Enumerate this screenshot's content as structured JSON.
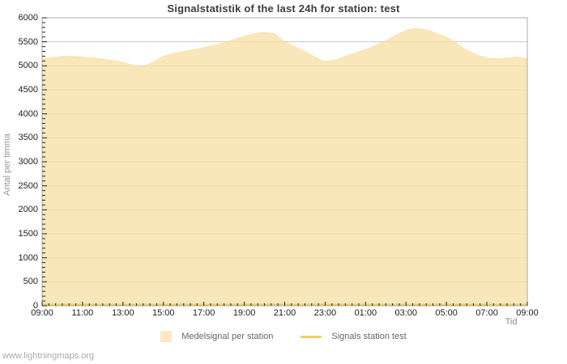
{
  "page": {
    "footer": "www.lightningmaps.org"
  },
  "chart_data": {
    "type": "area",
    "title": "Signalstatistik of the last 24h for station: test",
    "xlabel": "Tid",
    "ylabel": "Antal per timma",
    "grid": true,
    "legend_position": "bottom-center",
    "ylim": [
      0,
      6000
    ],
    "y_tick_step": 500,
    "y_minor_step": 100,
    "x_tick_labels": [
      "09:00",
      "11:00",
      "13:00",
      "15:00",
      "17:00",
      "19:00",
      "21:00",
      "23:00",
      "01:00",
      "03:00",
      "05:00",
      "07:00",
      "09:00"
    ],
    "x_minor_ticks_per_major": 6,
    "x_step_minutes": 30,
    "series": [
      {
        "name": "Medelsignal per station",
        "kind": "area",
        "color": "#F8E0A9",
        "swatch_color": "#FAE8C4",
        "values": [
          5160,
          5185,
          5210,
          5205,
          5190,
          5175,
          5150,
          5120,
          5080,
          5020,
          4990,
          5090,
          5210,
          5270,
          5310,
          5350,
          5390,
          5440,
          5490,
          5560,
          5630,
          5680,
          5710,
          5680,
          5510,
          5410,
          5310,
          5190,
          5100,
          5130,
          5210,
          5280,
          5350,
          5440,
          5530,
          5650,
          5750,
          5790,
          5760,
          5690,
          5610,
          5480,
          5340,
          5240,
          5170,
          5160,
          5170,
          5190,
          5160
        ]
      },
      {
        "name": "Signals station test",
        "kind": "line",
        "color": "#F0CE58",
        "values": [
          0,
          0,
          0,
          0,
          0,
          0,
          0,
          0,
          0,
          0,
          0,
          0,
          0,
          0,
          0,
          0,
          0,
          0,
          0,
          0,
          0,
          0,
          0,
          0,
          0,
          0,
          0,
          0,
          0,
          0,
          0,
          0,
          0,
          0,
          0,
          0,
          0,
          0,
          0,
          0,
          0,
          0,
          0,
          0,
          0,
          0,
          0,
          0,
          0
        ]
      }
    ],
    "colors": {
      "grid": "#c9c9c9",
      "border": "#ababab",
      "tick": "#222222",
      "background": "#ffffff"
    }
  }
}
